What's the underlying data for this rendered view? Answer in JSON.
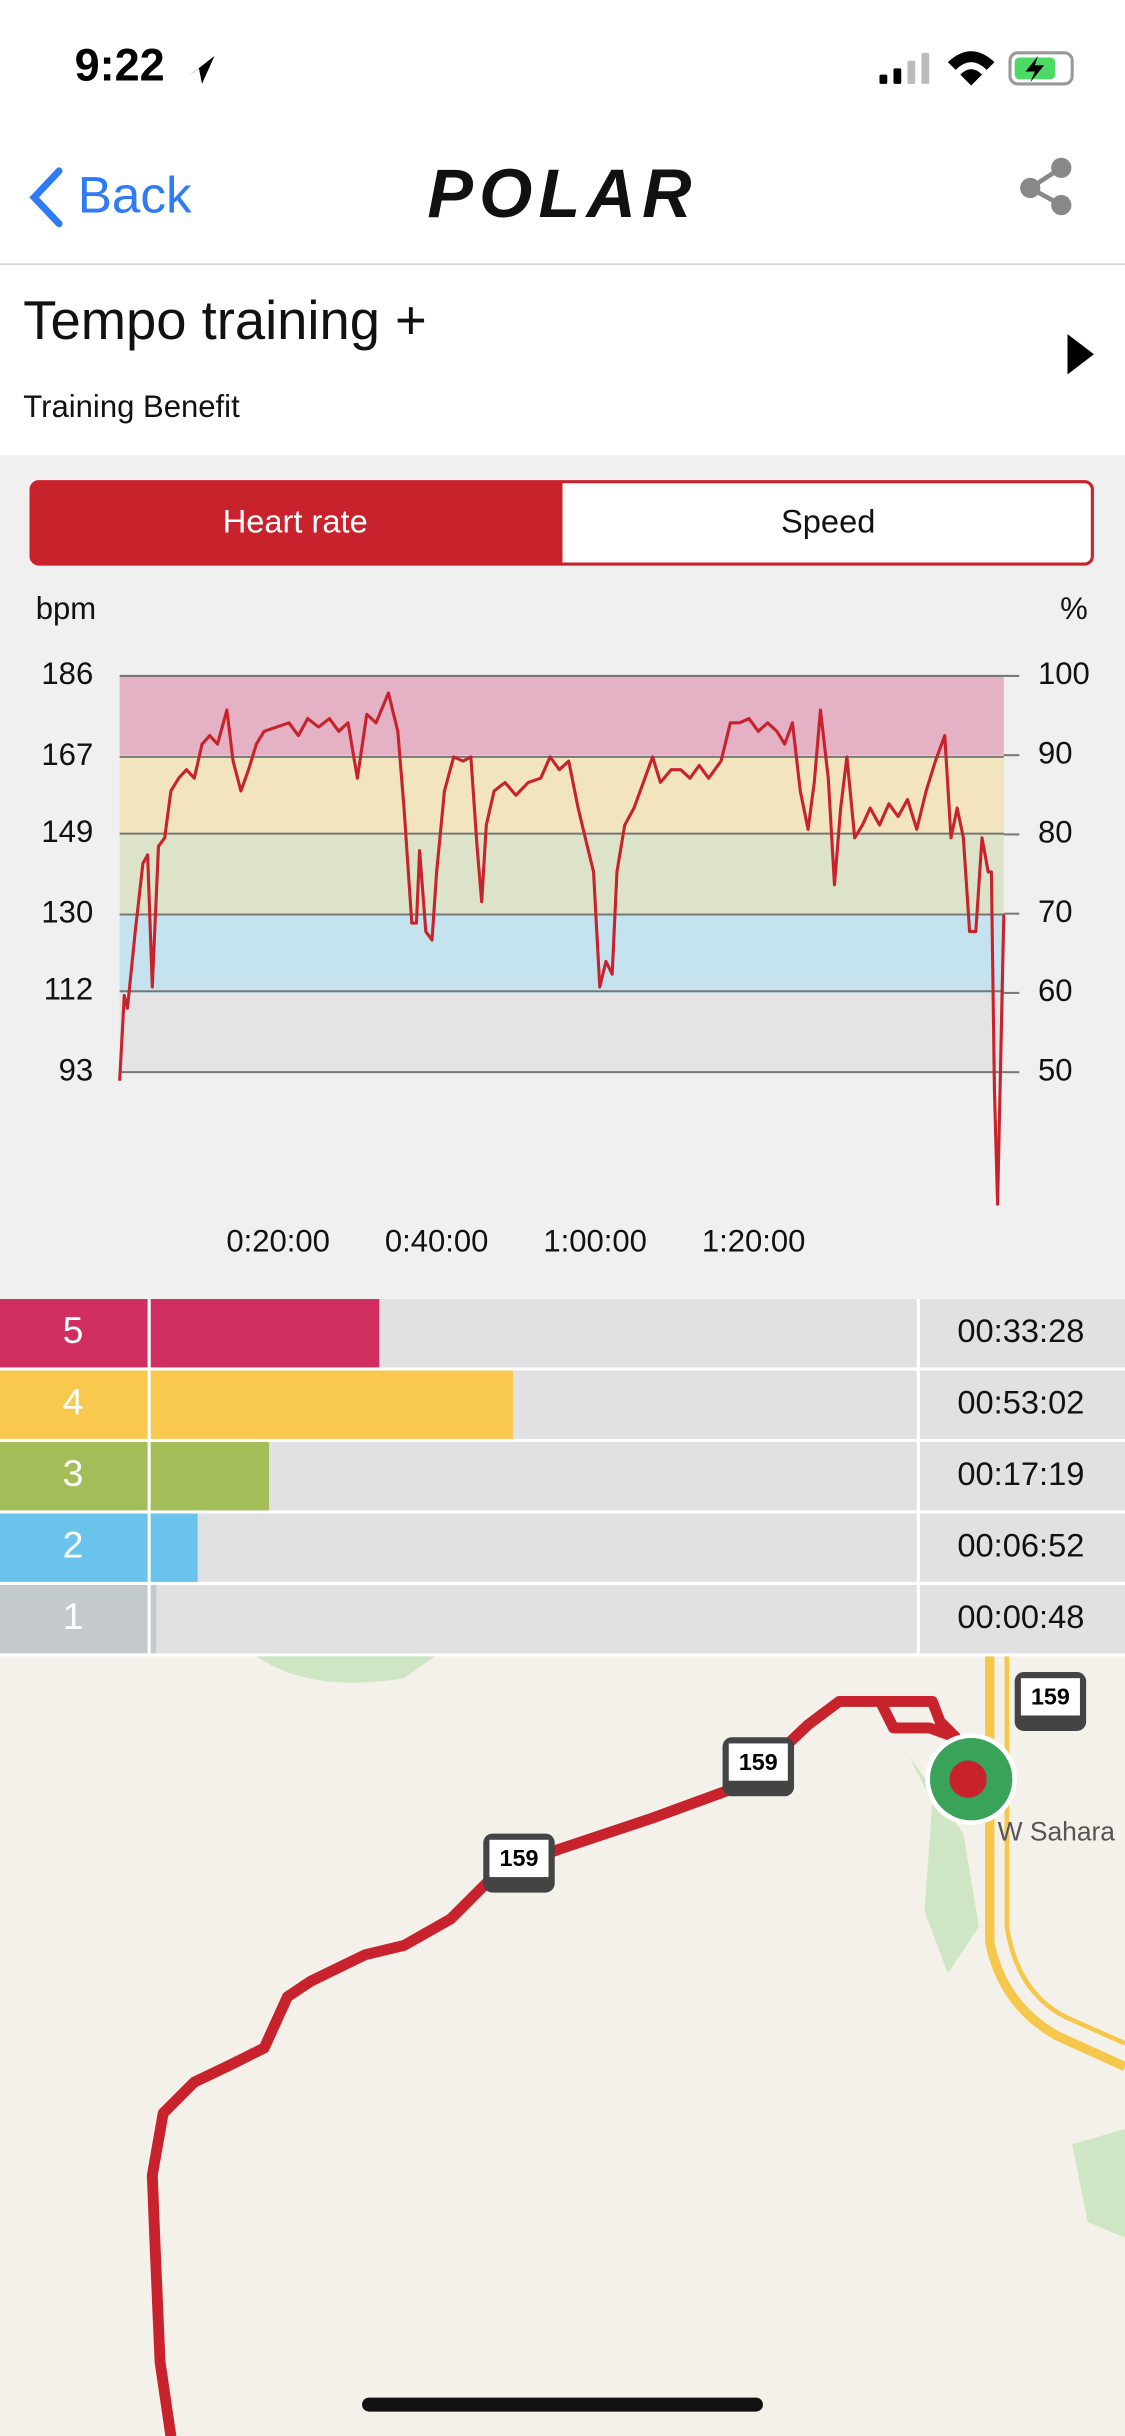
{
  "status": {
    "time": "9:22"
  },
  "header": {
    "back": "Back",
    "logo": "POLAR"
  },
  "workout": {
    "title": "Tempo training +",
    "subtitle": "Training Benefit"
  },
  "tabs": [
    "Heart rate",
    "Speed"
  ],
  "chart_data": [
    {
      "type": "line",
      "y_label": "bpm",
      "y2_label": "%",
      "x": [
        0,
        35,
        59,
        118,
        176,
        212,
        247,
        294,
        341,
        388,
        447,
        506,
        565,
        624,
        682,
        741,
        812,
        859,
        918,
        976,
        1035,
        1094,
        1188,
        1282,
        1353,
        1424,
        1506,
        1588,
        1659,
        1729,
        1800,
        1871,
        1941,
        2035,
        2106,
        2153,
        2212,
        2247,
        2271,
        2318,
        2365,
        2400,
        2459,
        2529,
        2600,
        2659,
        2706,
        2741,
        2776,
        2835,
        2918,
        3000,
        3094,
        3188,
        3259,
        3329,
        3400,
        3471,
        3541,
        3588,
        3635,
        3682,
        3729,
        3765,
        3824,
        3894,
        3965,
        4035,
        4094,
        4176,
        4247,
        4318,
        4388,
        4459,
        4553,
        4624,
        4694,
        4765,
        4835,
        4906,
        4976,
        5035,
        5094,
        5153,
        5212,
        5259,
        5306,
        5365,
        5412,
        5459,
        5506,
        5565,
        5624,
        5682,
        5753,
        5824,
        5894,
        5965,
        6035,
        6106,
        6176,
        6247,
        6294,
        6341,
        6388,
        6435,
        6482,
        6529,
        6576,
        6600,
        6623,
        6647,
        6694
      ],
      "series": [
        {
          "name": "Heart rate",
          "color": "#c8232c",
          "values": [
            91,
            111,
            108,
            126,
            142,
            144,
            113,
            146,
            148,
            159,
            162,
            164,
            162,
            170,
            172,
            170,
            178,
            166,
            159,
            164,
            170,
            173,
            174,
            175,
            172,
            176,
            174,
            176,
            173,
            175,
            162,
            177,
            175,
            182,
            173,
            155,
            128,
            128,
            145,
            126,
            124,
            140,
            159,
            167,
            166,
            167,
            146,
            133,
            151,
            159,
            161,
            158,
            161,
            162,
            167,
            164,
            166,
            155,
            146,
            140,
            113,
            119,
            116,
            140,
            151,
            155,
            161,
            167,
            161,
            164,
            164,
            162,
            165,
            162,
            166,
            175,
            175,
            176,
            173,
            175,
            173,
            170,
            175,
            159,
            150,
            161,
            178,
            162,
            137,
            155,
            167,
            148,
            151,
            155,
            151,
            156,
            153,
            157,
            150,
            159,
            166,
            172,
            148,
            155,
            148,
            126,
            126,
            148,
            140,
            140,
            89,
            62,
            130
          ]
        }
      ],
      "xlim": [
        0,
        6694
      ],
      "xticks": [
        {
          "value": 1200,
          "label": "0:20:00"
        },
        {
          "value": 2400,
          "label": "0:40:00"
        },
        {
          "value": 3600,
          "label": "1:00:00"
        },
        {
          "value": 4800,
          "label": "1:20:00"
        }
      ],
      "ylim": [
        93,
        186
      ],
      "yticks": [
        93,
        112,
        130,
        149,
        167,
        186
      ],
      "y2lim": [
        50,
        100
      ],
      "y2ticks": [
        50,
        60,
        70,
        80,
        90,
        100
      ],
      "band_colors": [
        "#e4e4e4",
        "#c5e3ef",
        "#dce3c8",
        "#f2e5bd",
        "#e5b1c4"
      ],
      "grid": true
    },
    {
      "type": "hbar",
      "categories": [
        5,
        4,
        3,
        2,
        1
      ],
      "values": [
        2008,
        3182,
        1039,
        412,
        48
      ],
      "value_labels": [
        "00:33:28",
        "00:53:02",
        "00:17:19",
        "00:06:52",
        "00:00:48"
      ],
      "colors": [
        "#cf2e5e",
        "#f8c84f",
        "#a3bd58",
        "#69c3eb",
        "#c4cacb"
      ],
      "xlim": [
        0,
        6730
      ]
    }
  ],
  "map": {
    "shields": [
      "159",
      "159",
      "159"
    ],
    "street": "W Sahara"
  }
}
